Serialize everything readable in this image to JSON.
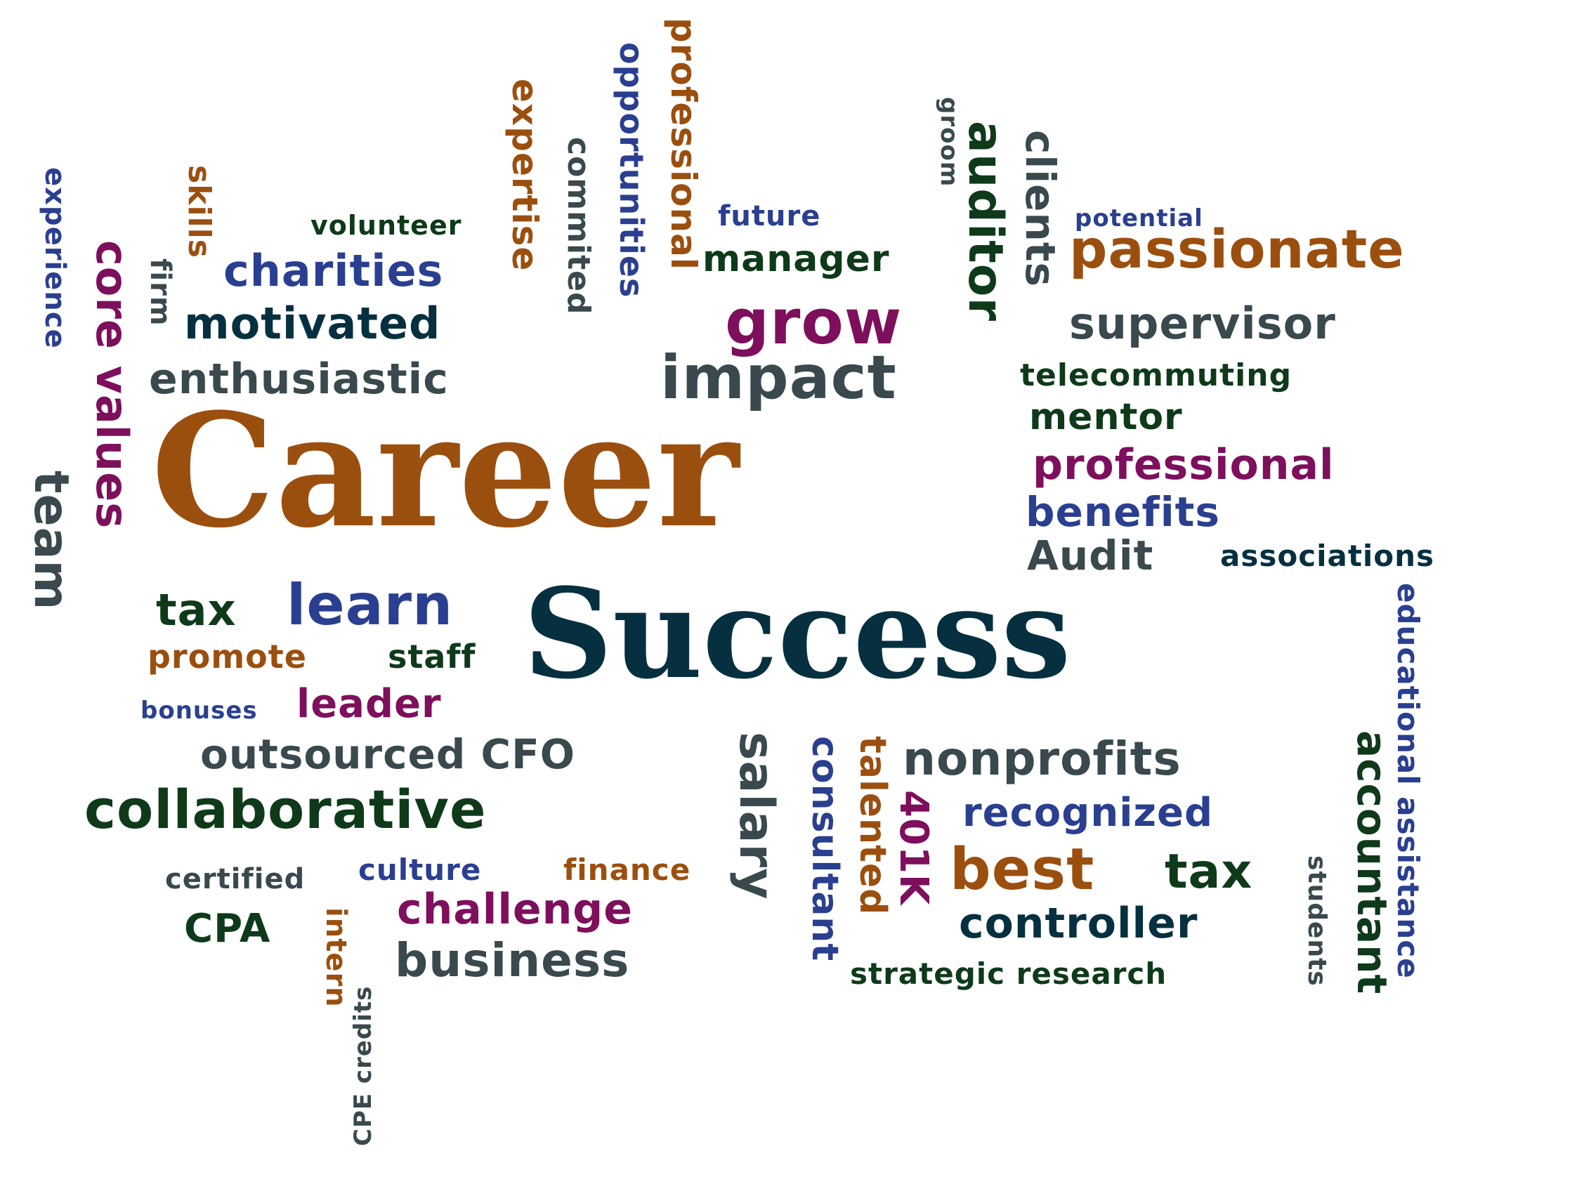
{
  "palette": {
    "orange": "#9b4f0f",
    "navy": "#06303f",
    "blue": "#2a3f8f",
    "purple": "#7d0f5c",
    "green": "#0e3a1a",
    "slate": "#39494d"
  },
  "words": [
    {
      "text": "Career"
    },
    {
      "text": "Success"
    },
    {
      "text": "passionate"
    },
    {
      "text": "supervisor"
    },
    {
      "text": "telecommuting"
    },
    {
      "text": "mentor"
    },
    {
      "text": "professional"
    },
    {
      "text": "benefits"
    },
    {
      "text": "Audit"
    },
    {
      "text": "associations"
    },
    {
      "text": "potential"
    },
    {
      "text": "clients"
    },
    {
      "text": "auditor"
    },
    {
      "text": "groom"
    },
    {
      "text": "future"
    },
    {
      "text": "manager"
    },
    {
      "text": "grow"
    },
    {
      "text": "impact"
    },
    {
      "text": "professional"
    },
    {
      "text": "opportunities"
    },
    {
      "text": "commited"
    },
    {
      "text": "expertise"
    },
    {
      "text": "volunteer"
    },
    {
      "text": "charities"
    },
    {
      "text": "motivated"
    },
    {
      "text": "enthusiastic"
    },
    {
      "text": "skills"
    },
    {
      "text": "firm"
    },
    {
      "text": "core values"
    },
    {
      "text": "experience"
    },
    {
      "text": "team"
    },
    {
      "text": "tax"
    },
    {
      "text": "learn"
    },
    {
      "text": "promote"
    },
    {
      "text": "staff"
    },
    {
      "text": "bonuses"
    },
    {
      "text": "leader"
    },
    {
      "text": "outsourced CFO"
    },
    {
      "text": "collaborative"
    },
    {
      "text": "certified"
    },
    {
      "text": "culture"
    },
    {
      "text": "finance"
    },
    {
      "text": "challenge"
    },
    {
      "text": "CPA"
    },
    {
      "text": "business"
    },
    {
      "text": "intern"
    },
    {
      "text": "CPE credits"
    },
    {
      "text": "salary"
    },
    {
      "text": "consultant"
    },
    {
      "text": "talented"
    },
    {
      "text": "401K"
    },
    {
      "text": "nonprofits"
    },
    {
      "text": "recognized"
    },
    {
      "text": "best"
    },
    {
      "text": "tax"
    },
    {
      "text": "controller"
    },
    {
      "text": "strategic research"
    },
    {
      "text": "students"
    },
    {
      "text": "accountant"
    },
    {
      "text": "educational assistance"
    }
  ]
}
